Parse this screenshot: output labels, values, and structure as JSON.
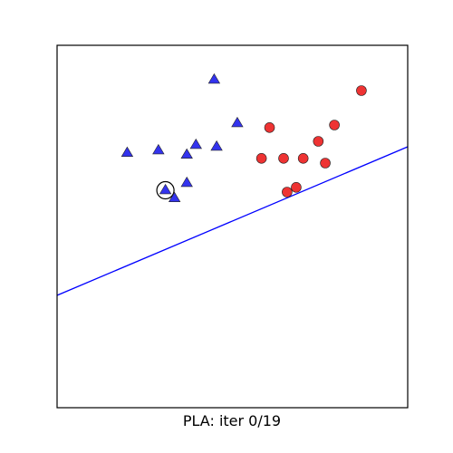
{
  "chart_data": {
    "type": "scatter",
    "title": "",
    "xlabel": "PLA: iter 0/19",
    "ylabel": "",
    "xlim": [
      0,
      1
    ],
    "ylim": [
      0,
      1
    ],
    "grid": false,
    "ticks": false,
    "series": [
      {
        "marker": "triangle",
        "color": "#3333ee",
        "points": [
          [
            0.448,
            0.905
          ],
          [
            0.514,
            0.785
          ],
          [
            0.2,
            0.703
          ],
          [
            0.289,
            0.71
          ],
          [
            0.396,
            0.725
          ],
          [
            0.455,
            0.72
          ],
          [
            0.37,
            0.698
          ],
          [
            0.37,
            0.62
          ],
          [
            0.309,
            0.6
          ],
          [
            0.335,
            0.578
          ]
        ]
      },
      {
        "marker": "circle",
        "color": "#ee3333",
        "points": [
          [
            0.868,
            0.875
          ],
          [
            0.606,
            0.773
          ],
          [
            0.791,
            0.78
          ],
          [
            0.745,
            0.735
          ],
          [
            0.583,
            0.688
          ],
          [
            0.646,
            0.688
          ],
          [
            0.702,
            0.688
          ],
          [
            0.765,
            0.675
          ],
          [
            0.682,
            0.608
          ],
          [
            0.656,
            0.595
          ]
        ]
      }
    ],
    "highlighted_point": [
      0.309,
      0.6
    ],
    "decision_line": {
      "color": "#0000ff",
      "points": [
        [
          0,
          0.31
        ],
        [
          1,
          0.72
        ]
      ]
    }
  }
}
